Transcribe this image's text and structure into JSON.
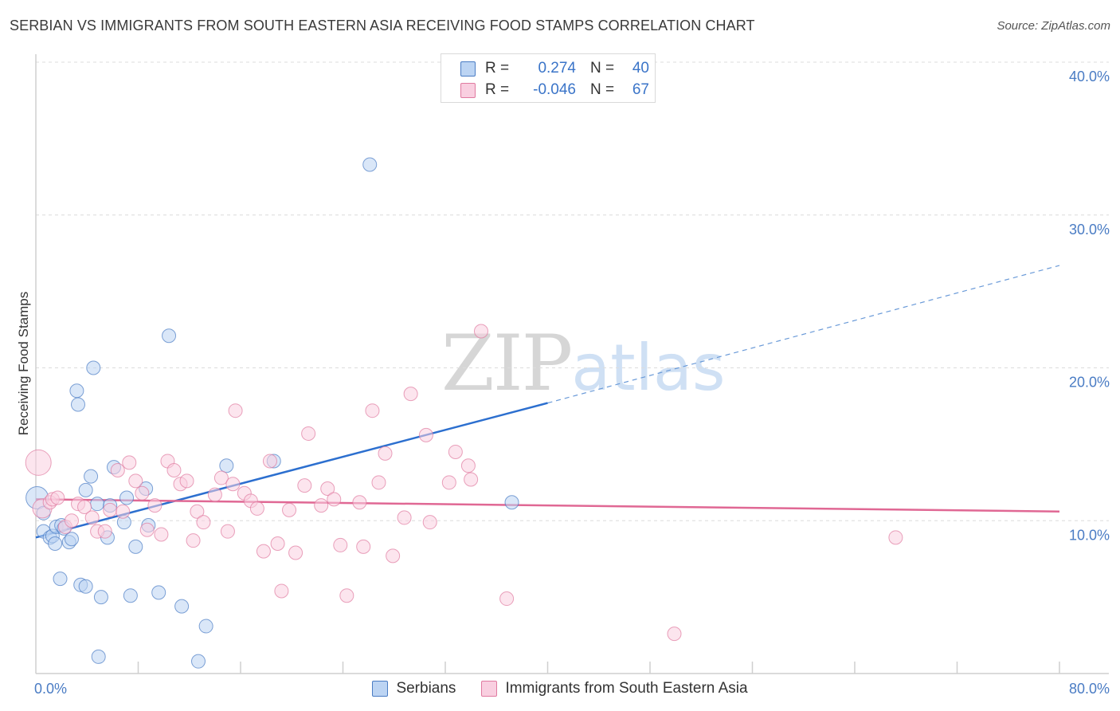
{
  "title": "SERBIAN VS IMMIGRANTS FROM SOUTH EASTERN ASIA RECEIVING FOOD STAMPS CORRELATION CHART",
  "source": "Source: ZipAtlas.com",
  "watermark": {
    "zip": "ZIP",
    "atlas": "atlas"
  },
  "stats": [
    {
      "r_label": "R =",
      "r_value": "0.274",
      "n_label": "N =",
      "n_value": "40",
      "color": "#4a7cc4",
      "fill": "#bcd4f3"
    },
    {
      "r_label": "R =",
      "r_value": "-0.046",
      "n_label": "N =",
      "n_value": "67",
      "color": "#e07aa0",
      "fill": "#f9cfe0"
    }
  ],
  "chart_data": {
    "type": "scatter",
    "title": "SERBIAN VS IMMIGRANTS FROM SOUTH EASTERN ASIA RECEIVING FOOD STAMPS CORRELATION CHART",
    "xlabel": "",
    "ylabel": "Receiving Food Stamps",
    "xlim": [
      0,
      80
    ],
    "ylim": [
      0,
      40
    ],
    "x_ticks": [
      {
        "value": 0,
        "label": "0.0%"
      },
      {
        "value": 80,
        "label": "80.0%"
      }
    ],
    "y_ticks": [
      {
        "value": 10,
        "label": "10.0%"
      },
      {
        "value": 20,
        "label": "20.0%"
      },
      {
        "value": 30,
        "label": "30.0%"
      },
      {
        "value": 40,
        "label": "40.0%"
      }
    ],
    "grid": true,
    "legend_position": "bottom-center",
    "series": [
      {
        "name": "Serbians",
        "color": "#4a7cc4",
        "fill": "#bcd4f3",
        "trend": {
          "x": [
            0,
            40,
            80
          ],
          "y": [
            8.9,
            17.7,
            26.7
          ],
          "solid_until": 40
        },
        "points": [
          [
            0.1,
            11.5
          ],
          [
            0.6,
            10.5
          ],
          [
            0.6,
            9.3
          ],
          [
            1.1,
            8.9
          ],
          [
            1.3,
            9.0
          ],
          [
            1.5,
            8.5
          ],
          [
            1.6,
            9.6
          ],
          [
            1.9,
            6.2
          ],
          [
            2.0,
            9.7
          ],
          [
            2.2,
            9.5
          ],
          [
            2.6,
            8.6
          ],
          [
            2.8,
            8.8
          ],
          [
            3.2,
            18.5
          ],
          [
            3.3,
            17.6
          ],
          [
            3.5,
            5.8
          ],
          [
            3.9,
            5.7
          ],
          [
            3.9,
            12.0
          ],
          [
            4.3,
            12.9
          ],
          [
            4.5,
            20.0
          ],
          [
            4.8,
            11.1
          ],
          [
            5.1,
            5.0
          ],
          [
            5.6,
            8.9
          ],
          [
            5.8,
            11.0
          ],
          [
            6.1,
            13.5
          ],
          [
            6.9,
            9.9
          ],
          [
            7.1,
            11.5
          ],
          [
            7.4,
            5.1
          ],
          [
            7.8,
            8.3
          ],
          [
            8.6,
            12.1
          ],
          [
            8.8,
            9.7
          ],
          [
            9.6,
            5.3
          ],
          [
            10.4,
            22.1
          ],
          [
            11.4,
            4.4
          ],
          [
            12.7,
            0.8
          ],
          [
            13.3,
            3.1
          ],
          [
            14.9,
            13.6
          ],
          [
            18.6,
            13.9
          ],
          [
            26.1,
            33.3
          ],
          [
            37.2,
            11.2
          ],
          [
            4.9,
            1.1
          ]
        ]
      },
      {
        "name": "Immigrants from South Eastern Asia",
        "color": "#e07aa0",
        "fill": "#f9cfe0",
        "trend": {
          "x": [
            0,
            80
          ],
          "y": [
            11.4,
            10.6
          ],
          "solid_until": 80
        },
        "points": [
          [
            0.2,
            13.8
          ],
          [
            0.5,
            10.8
          ],
          [
            1.1,
            11.2
          ],
          [
            1.3,
            11.4
          ],
          [
            1.7,
            11.5
          ],
          [
            2.3,
            9.6
          ],
          [
            2.8,
            10.0
          ],
          [
            3.3,
            11.1
          ],
          [
            3.8,
            10.9
          ],
          [
            4.4,
            10.2
          ],
          [
            4.8,
            9.3
          ],
          [
            5.4,
            9.3
          ],
          [
            5.8,
            10.7
          ],
          [
            6.4,
            13.3
          ],
          [
            6.8,
            10.6
          ],
          [
            7.3,
            13.8
          ],
          [
            7.8,
            12.6
          ],
          [
            8.3,
            11.8
          ],
          [
            8.7,
            9.4
          ],
          [
            9.3,
            11.0
          ],
          [
            9.8,
            9.1
          ],
          [
            10.3,
            13.9
          ],
          [
            10.8,
            13.3
          ],
          [
            11.3,
            12.4
          ],
          [
            11.8,
            12.6
          ],
          [
            12.3,
            8.7
          ],
          [
            12.6,
            10.6
          ],
          [
            13.1,
            9.9
          ],
          [
            14.0,
            11.7
          ],
          [
            14.5,
            12.8
          ],
          [
            15.0,
            9.3
          ],
          [
            15.4,
            12.4
          ],
          [
            15.6,
            17.2
          ],
          [
            16.3,
            11.8
          ],
          [
            16.8,
            11.3
          ],
          [
            17.3,
            10.8
          ],
          [
            17.8,
            8.0
          ],
          [
            18.3,
            13.9
          ],
          [
            18.9,
            8.5
          ],
          [
            19.2,
            5.4
          ],
          [
            19.8,
            10.7
          ],
          [
            20.3,
            7.9
          ],
          [
            21.0,
            12.3
          ],
          [
            21.3,
            15.7
          ],
          [
            22.3,
            11.0
          ],
          [
            22.8,
            12.1
          ],
          [
            23.3,
            11.4
          ],
          [
            23.8,
            8.4
          ],
          [
            24.3,
            5.1
          ],
          [
            25.3,
            11.2
          ],
          [
            25.6,
            8.3
          ],
          [
            26.3,
            17.2
          ],
          [
            26.8,
            12.5
          ],
          [
            27.3,
            14.4
          ],
          [
            27.9,
            7.7
          ],
          [
            28.8,
            10.2
          ],
          [
            29.3,
            18.3
          ],
          [
            30.5,
            15.6
          ],
          [
            30.8,
            9.9
          ],
          [
            32.3,
            12.5
          ],
          [
            32.8,
            14.5
          ],
          [
            33.8,
            13.6
          ],
          [
            34.0,
            12.7
          ],
          [
            34.8,
            22.4
          ],
          [
            36.8,
            4.9
          ],
          [
            49.9,
            2.6
          ],
          [
            67.2,
            8.9
          ]
        ]
      }
    ]
  }
}
